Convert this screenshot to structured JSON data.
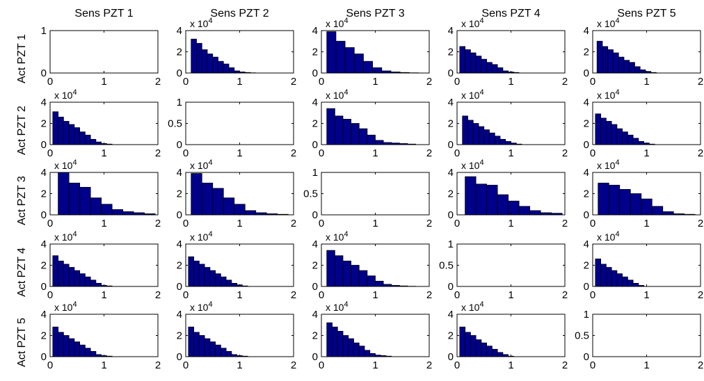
{
  "figure": {
    "x_axis_max": 2,
    "x_ticks": [
      0,
      1,
      2
    ],
    "bar_color": "#00008B",
    "bar_edge_color": "#000000",
    "scale_label_prefix": "x 10",
    "scale_label_exponent": "4"
  },
  "columns": [
    {
      "title": "Sens PZT 1"
    },
    {
      "title": "Sens PZT 2"
    },
    {
      "title": "Sens PZT 3"
    },
    {
      "title": "Sens PZT 4"
    },
    {
      "title": "Sens PZT 5"
    }
  ],
  "rows": [
    {
      "label": "Act PZT 1"
    },
    {
      "label": "Act PZT 2"
    },
    {
      "label": "Act PZT 3"
    },
    {
      "label": "Act PZT 4"
    },
    {
      "label": "Act PZT 5"
    }
  ],
  "chart_data": [
    {
      "type": "bar",
      "title": "Sens PZT 1",
      "ylabel": "Act PZT 1",
      "empty": true,
      "xlim": [
        0,
        2
      ],
      "ylim": [
        0,
        1
      ],
      "yticks": [
        0,
        1
      ],
      "scale": 1,
      "bin_edges": [],
      "values": []
    },
    {
      "type": "bar",
      "title": "Sens PZT 2",
      "ylabel": "",
      "empty": false,
      "xlim": [
        0,
        2
      ],
      "ylim": [
        0,
        4
      ],
      "yticks": [
        0,
        2,
        4
      ],
      "scale": 10000,
      "bin_edges": [
        0.1,
        0.2,
        0.3,
        0.4,
        0.5,
        0.6,
        0.7,
        0.8,
        0.9,
        1.0,
        1.1,
        1.2,
        1.3,
        1.4,
        1.5,
        1.6,
        1.7,
        1.8,
        1.9
      ],
      "values": [
        3.2,
        2.8,
        2.2,
        1.8,
        1.5,
        1.1,
        0.85,
        0.5,
        0.2,
        0.1,
        0.05,
        0.02,
        0,
        0,
        0,
        0,
        0,
        0
      ]
    },
    {
      "type": "bar",
      "title": "Sens PZT 3",
      "ylabel": "",
      "empty": false,
      "xlim": [
        0,
        2
      ],
      "ylim": [
        0,
        4
      ],
      "yticks": [
        0,
        2,
        4
      ],
      "scale": 10000,
      "bin_edges": [
        0.1,
        0.27,
        0.44,
        0.61,
        0.78,
        0.95,
        1.12,
        1.29,
        1.46,
        1.63,
        1.8
      ],
      "values": [
        3.9,
        3.0,
        2.4,
        1.8,
        1.1,
        0.5,
        0.2,
        0.1,
        0.05,
        0.02
      ]
    },
    {
      "type": "bar",
      "title": "Sens PZT 4",
      "ylabel": "",
      "empty": false,
      "xlim": [
        0,
        2
      ],
      "ylim": [
        0,
        4
      ],
      "yticks": [
        0,
        2,
        4
      ],
      "scale": 10000,
      "bin_edges": [
        0.05,
        0.15,
        0.25,
        0.35,
        0.45,
        0.55,
        0.65,
        0.75,
        0.85,
        0.95,
        1.05,
        1.15,
        1.25,
        1.35,
        1.45,
        1.55,
        1.65,
        1.75,
        1.85
      ],
      "values": [
        2.5,
        2.2,
        1.9,
        1.6,
        1.3,
        1.0,
        0.8,
        0.5,
        0.2,
        0.1,
        0.05,
        0,
        0,
        0,
        0,
        0,
        0,
        0
      ]
    },
    {
      "type": "bar",
      "title": "Sens PZT 5",
      "ylabel": "",
      "empty": false,
      "xlim": [
        0,
        2
      ],
      "ylim": [
        0,
        4
      ],
      "yticks": [
        0,
        2,
        4
      ],
      "scale": 10000,
      "bin_edges": [
        0.08,
        0.18,
        0.28,
        0.38,
        0.48,
        0.58,
        0.68,
        0.78,
        0.88,
        0.98,
        1.08,
        1.18,
        1.28,
        1.38,
        1.48,
        1.58,
        1.68,
        1.78,
        1.88
      ],
      "values": [
        3.0,
        2.5,
        2.2,
        1.9,
        1.5,
        1.2,
        1.0,
        0.6,
        0.3,
        0.15,
        0.05,
        0,
        0,
        0,
        0,
        0,
        0,
        0
      ]
    },
    {
      "type": "bar",
      "title": "",
      "ylabel": "Act PZT 2",
      "empty": false,
      "xlim": [
        0,
        2
      ],
      "ylim": [
        0,
        4
      ],
      "yticks": [
        0,
        2,
        4
      ],
      "scale": 10000,
      "bin_edges": [
        0.05,
        0.15,
        0.25,
        0.35,
        0.45,
        0.55,
        0.65,
        0.75,
        0.85,
        0.95,
        1.05,
        1.15,
        1.25,
        1.35,
        1.45,
        1.55,
        1.65,
        1.75,
        1.85
      ],
      "values": [
        3.1,
        2.6,
        2.2,
        1.9,
        1.6,
        1.2,
        0.9,
        0.5,
        0.25,
        0.1,
        0.05,
        0,
        0,
        0,
        0,
        0,
        0,
        0
      ]
    },
    {
      "type": "bar",
      "title": "",
      "ylabel": "",
      "empty": true,
      "xlim": [
        0,
        2
      ],
      "ylim": [
        0,
        1
      ],
      "yticks": [
        0,
        0.5,
        1
      ],
      "scale": 1,
      "bin_edges": [],
      "values": []
    },
    {
      "type": "bar",
      "title": "",
      "ylabel": "",
      "empty": false,
      "xlim": [
        0,
        2
      ],
      "ylim": [
        0,
        4
      ],
      "yticks": [
        0,
        2,
        4
      ],
      "scale": 10000,
      "bin_edges": [
        0.1,
        0.25,
        0.4,
        0.55,
        0.7,
        0.85,
        1.0,
        1.15,
        1.3,
        1.45,
        1.6,
        1.75,
        1.9
      ],
      "values": [
        3.4,
        2.7,
        2.4,
        2.0,
        1.5,
        0.9,
        0.4,
        0.2,
        0.15,
        0.1,
        0.05,
        0
      ]
    },
    {
      "type": "bar",
      "title": "",
      "ylabel": "",
      "empty": false,
      "xlim": [
        0,
        2
      ],
      "ylim": [
        0,
        4
      ],
      "yticks": [
        0,
        2,
        4
      ],
      "scale": 10000,
      "bin_edges": [
        0.1,
        0.2,
        0.3,
        0.4,
        0.5,
        0.6,
        0.7,
        0.8,
        0.9,
        1.0,
        1.1,
        1.2,
        1.3,
        1.4,
        1.5,
        1.6,
        1.7,
        1.8,
        1.9
      ],
      "values": [
        2.7,
        2.3,
        2.0,
        1.7,
        1.4,
        1.1,
        0.8,
        0.5,
        0.3,
        0.15,
        0.05,
        0,
        0,
        0,
        0,
        0,
        0,
        0
      ]
    },
    {
      "type": "bar",
      "title": "",
      "ylabel": "",
      "empty": false,
      "xlim": [
        0,
        2
      ],
      "ylim": [
        0,
        4
      ],
      "yticks": [
        0,
        2,
        4
      ],
      "scale": 10000,
      "bin_edges": [
        0.05,
        0.15,
        0.25,
        0.35,
        0.45,
        0.55,
        0.65,
        0.75,
        0.85,
        0.95,
        1.05,
        1.15,
        1.25,
        1.35,
        1.45,
        1.55,
        1.65,
        1.75,
        1.85
      ],
      "values": [
        2.9,
        2.5,
        2.2,
        1.9,
        1.5,
        1.2,
        0.9,
        0.6,
        0.3,
        0.15,
        0.05,
        0,
        0,
        0,
        0,
        0,
        0,
        0
      ]
    },
    {
      "type": "bar",
      "title": "",
      "ylabel": "Act PZT 3",
      "empty": false,
      "xlim": [
        0,
        2
      ],
      "ylim": [
        0,
        4
      ],
      "yticks": [
        0,
        2,
        4
      ],
      "scale": 10000,
      "bin_edges": [
        0.15,
        0.35,
        0.55,
        0.75,
        0.95,
        1.15,
        1.35,
        1.55,
        1.75,
        1.95
      ],
      "values": [
        4.0,
        3.0,
        2.6,
        1.6,
        1.0,
        0.5,
        0.3,
        0.2,
        0.1
      ]
    },
    {
      "type": "bar",
      "title": "",
      "ylabel": "",
      "empty": false,
      "xlim": [
        0,
        2
      ],
      "ylim": [
        0,
        4
      ],
      "yticks": [
        0,
        2,
        4
      ],
      "scale": 10000,
      "bin_edges": [
        0.1,
        0.3,
        0.5,
        0.7,
        0.9,
        1.1,
        1.3,
        1.5,
        1.7,
        1.9
      ],
      "values": [
        3.9,
        3.0,
        2.5,
        1.6,
        1.0,
        0.4,
        0.2,
        0.1,
        0.05
      ]
    },
    {
      "type": "bar",
      "title": "",
      "ylabel": "",
      "empty": true,
      "xlim": [
        0,
        2
      ],
      "ylim": [
        0,
        1
      ],
      "yticks": [
        0,
        0.5,
        1
      ],
      "scale": 1,
      "bin_edges": [],
      "values": []
    },
    {
      "type": "bar",
      "title": "",
      "ylabel": "",
      "empty": false,
      "xlim": [
        0,
        2
      ],
      "ylim": [
        0,
        4
      ],
      "yticks": [
        0,
        2,
        4
      ],
      "scale": 10000,
      "bin_edges": [
        0.15,
        0.35,
        0.55,
        0.75,
        0.95,
        1.15,
        1.35,
        1.55,
        1.75,
        1.95
      ],
      "values": [
        3.6,
        2.9,
        2.8,
        1.9,
        1.3,
        0.8,
        0.4,
        0.2,
        0.15
      ]
    },
    {
      "type": "bar",
      "title": "",
      "ylabel": "",
      "empty": false,
      "xlim": [
        0,
        2
      ],
      "ylim": [
        0,
        4
      ],
      "yticks": [
        0,
        2,
        4
      ],
      "scale": 10000,
      "bin_edges": [
        0.1,
        0.3,
        0.5,
        0.7,
        0.9,
        1.1,
        1.3,
        1.5,
        1.7,
        1.9
      ],
      "values": [
        3.0,
        2.8,
        2.4,
        2.0,
        1.5,
        0.8,
        0.3,
        0.1,
        0.05
      ]
    },
    {
      "type": "bar",
      "title": "",
      "ylabel": "Act PZT 4",
      "empty": false,
      "xlim": [
        0,
        2
      ],
      "ylim": [
        0,
        4
      ],
      "yticks": [
        0,
        2,
        4
      ],
      "scale": 10000,
      "bin_edges": [
        0.05,
        0.15,
        0.25,
        0.35,
        0.45,
        0.55,
        0.65,
        0.75,
        0.85,
        0.95,
        1.05,
        1.15,
        1.25,
        1.35,
        1.45,
        1.55,
        1.65,
        1.75,
        1.85
      ],
      "values": [
        2.9,
        2.4,
        2.1,
        1.8,
        1.5,
        1.2,
        0.9,
        0.6,
        0.3,
        0.1,
        0.05,
        0,
        0,
        0,
        0,
        0,
        0,
        0
      ]
    },
    {
      "type": "bar",
      "title": "",
      "ylabel": "",
      "empty": false,
      "xlim": [
        0,
        2
      ],
      "ylim": [
        0,
        4
      ],
      "yticks": [
        0,
        2,
        4
      ],
      "scale": 10000,
      "bin_edges": [
        0.05,
        0.15,
        0.25,
        0.35,
        0.45,
        0.55,
        0.65,
        0.75,
        0.85,
        0.95,
        1.05,
        1.15,
        1.25,
        1.35,
        1.45,
        1.55,
        1.65,
        1.75,
        1.85
      ],
      "values": [
        2.8,
        2.4,
        2.1,
        1.8,
        1.5,
        1.2,
        0.9,
        0.6,
        0.3,
        0.15,
        0.05,
        0,
        0,
        0,
        0,
        0,
        0,
        0
      ]
    },
    {
      "type": "bar",
      "title": "",
      "ylabel": "",
      "empty": false,
      "xlim": [
        0,
        2
      ],
      "ylim": [
        0,
        4
      ],
      "yticks": [
        0,
        2,
        4
      ],
      "scale": 10000,
      "bin_edges": [
        0.1,
        0.25,
        0.4,
        0.55,
        0.7,
        0.85,
        1.0,
        1.15,
        1.3,
        1.45,
        1.6,
        1.75,
        1.9
      ],
      "values": [
        3.4,
        2.9,
        2.4,
        2.0,
        1.5,
        1.0,
        0.5,
        0.2,
        0.1,
        0.05,
        0.02,
        0
      ]
    },
    {
      "type": "bar",
      "title": "",
      "ylabel": "",
      "empty": true,
      "xlim": [
        0,
        2
      ],
      "ylim": [
        0,
        1
      ],
      "yticks": [
        0,
        0.5,
        1
      ],
      "scale": 1,
      "bin_edges": [],
      "values": []
    },
    {
      "type": "bar",
      "title": "",
      "ylabel": "",
      "empty": false,
      "xlim": [
        0,
        2
      ],
      "ylim": [
        0,
        4
      ],
      "yticks": [
        0,
        2,
        4
      ],
      "scale": 10000,
      "bin_edges": [
        0.05,
        0.15,
        0.25,
        0.35,
        0.45,
        0.55,
        0.65,
        0.75,
        0.85,
        0.95,
        1.05,
        1.15,
        1.25,
        1.35,
        1.45,
        1.55,
        1.65,
        1.75,
        1.85
      ],
      "values": [
        2.6,
        2.1,
        1.8,
        1.5,
        1.2,
        0.9,
        0.6,
        0.3,
        0.1,
        0,
        0,
        0,
        0,
        0,
        0,
        0,
        0,
        0
      ]
    },
    {
      "type": "bar",
      "title": "",
      "ylabel": "Act PZT 5",
      "empty": false,
      "xlim": [
        0,
        2
      ],
      "ylim": [
        0,
        4
      ],
      "yticks": [
        0,
        2,
        4
      ],
      "scale": 10000,
      "bin_edges": [
        0.05,
        0.15,
        0.25,
        0.35,
        0.45,
        0.55,
        0.65,
        0.75,
        0.85,
        0.95,
        1.05,
        1.15,
        1.25,
        1.35,
        1.45,
        1.55,
        1.65,
        1.75,
        1.85
      ],
      "values": [
        2.8,
        2.3,
        2.0,
        1.7,
        1.4,
        1.1,
        0.8,
        0.5,
        0.2,
        0.1,
        0.05,
        0,
        0,
        0,
        0,
        0,
        0,
        0
      ]
    },
    {
      "type": "bar",
      "title": "",
      "ylabel": "",
      "empty": false,
      "xlim": [
        0,
        2
      ],
      "ylim": [
        0,
        4
      ],
      "yticks": [
        0,
        2,
        4
      ],
      "scale": 10000,
      "bin_edges": [
        0.05,
        0.15,
        0.25,
        0.35,
        0.45,
        0.55,
        0.65,
        0.75,
        0.85,
        0.95,
        1.05,
        1.15,
        1.25,
        1.35,
        1.45,
        1.55,
        1.65,
        1.75,
        1.85
      ],
      "values": [
        2.8,
        2.3,
        2.0,
        1.7,
        1.4,
        1.1,
        0.8,
        0.5,
        0.2,
        0.1,
        0.05,
        0,
        0,
        0,
        0,
        0,
        0,
        0
      ]
    },
    {
      "type": "bar",
      "title": "",
      "ylabel": "",
      "empty": false,
      "xlim": [
        0,
        2
      ],
      "ylim": [
        0,
        4
      ],
      "yticks": [
        0,
        2,
        4
      ],
      "scale": 10000,
      "bin_edges": [
        0.1,
        0.2,
        0.3,
        0.4,
        0.5,
        0.6,
        0.7,
        0.8,
        0.9,
        1.0,
        1.1,
        1.2,
        1.3,
        1.4,
        1.5,
        1.6,
        1.7,
        1.8,
        1.9
      ],
      "values": [
        3.2,
        2.8,
        2.4,
        2.0,
        1.7,
        1.3,
        1.0,
        0.6,
        0.3,
        0.15,
        0.1,
        0.05,
        0,
        0,
        0,
        0,
        0,
        0
      ]
    },
    {
      "type": "bar",
      "title": "",
      "ylabel": "",
      "empty": false,
      "xlim": [
        0,
        2
      ],
      "ylim": [
        0,
        4
      ],
      "yticks": [
        0,
        2,
        4
      ],
      "scale": 10000,
      "bin_edges": [
        0.05,
        0.15,
        0.25,
        0.35,
        0.45,
        0.55,
        0.65,
        0.75,
        0.85,
        0.95,
        1.05,
        1.15,
        1.25,
        1.35,
        1.45,
        1.55,
        1.65,
        1.75,
        1.85
      ],
      "values": [
        2.8,
        2.3,
        2.0,
        1.6,
        1.3,
        1.0,
        0.7,
        0.4,
        0.2,
        0.05,
        0,
        0,
        0,
        0,
        0,
        0,
        0,
        0
      ]
    },
    {
      "type": "bar",
      "title": "",
      "ylabel": "",
      "empty": true,
      "xlim": [
        0,
        2
      ],
      "ylim": [
        0,
        1
      ],
      "yticks": [
        0,
        0.5,
        1
      ],
      "scale": 1,
      "bin_edges": [],
      "values": []
    }
  ]
}
